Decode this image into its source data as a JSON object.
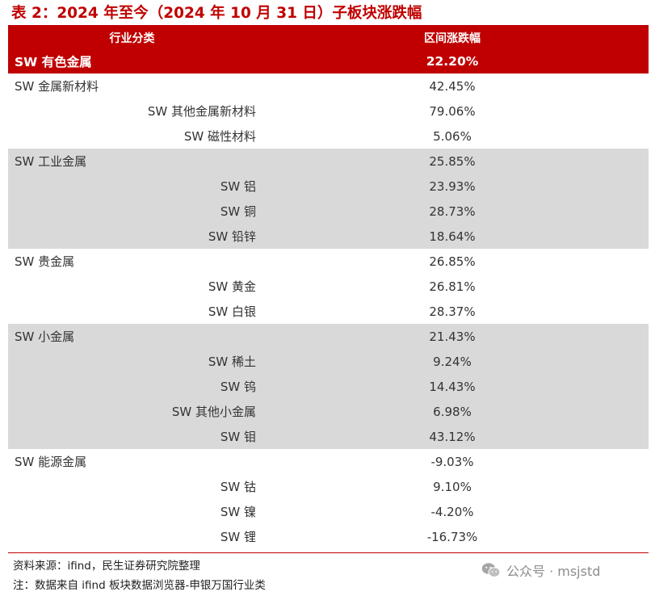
{
  "title": "表 2：2024 年至今（2024 年 10 月 31 日）子板块涨跌幅",
  "table": {
    "headers": [
      "行业分类",
      "区间涨跌幅"
    ],
    "total": {
      "name": "SW 有色金属",
      "value": "22.20%"
    },
    "rows": [
      {
        "name": "SW 金属新材料",
        "value": "42.45%",
        "level": 1
      },
      {
        "name": "SW 其他金属新材料",
        "value": "79.06%",
        "level": 2
      },
      {
        "name": "SW 磁性材料",
        "value": "5.06%",
        "level": 2
      },
      {
        "name": "SW 工业金属",
        "value": "25.85%",
        "level": 1
      },
      {
        "name": "SW 铝",
        "value": "23.93%",
        "level": 2
      },
      {
        "name": "SW 铜",
        "value": "28.73%",
        "level": 2
      },
      {
        "name": "SW 铅锌",
        "value": "18.64%",
        "level": 2
      },
      {
        "name": "SW 贵金属",
        "value": "26.85%",
        "level": 1
      },
      {
        "name": "SW 黄金",
        "value": "26.81%",
        "level": 2
      },
      {
        "name": "SW 白银",
        "value": "28.37%",
        "level": 2
      },
      {
        "name": "SW 小金属",
        "value": "21.43%",
        "level": 1
      },
      {
        "name": "SW 稀土",
        "value": "9.24%",
        "level": 2
      },
      {
        "name": "SW 钨",
        "value": "14.43%",
        "level": 2
      },
      {
        "name": "SW 其他小金属",
        "value": "6.98%",
        "level": 2
      },
      {
        "name": "SW 钼",
        "value": "43.12%",
        "level": 2
      },
      {
        "name": "SW 能源金属",
        "value": "-9.03%",
        "level": 1
      },
      {
        "name": "SW 钴",
        "value": "9.10%",
        "level": 2
      },
      {
        "name": "SW 镍",
        "value": "-4.20%",
        "level": 2
      },
      {
        "name": "SW 锂",
        "value": "-16.73%",
        "level": 2
      }
    ]
  },
  "footer": {
    "source": "资料来源：ifind，民生证券研究院整理",
    "note": "注：数据来自 ifind 板块数据浏览器-申银万国行业类"
  },
  "watermark": {
    "text": "公众号 · msjstd",
    "icon": "wechat-icon"
  },
  "colors": {
    "accent": "#c00000",
    "shade": "#d9d9d9",
    "text": "#333333"
  }
}
